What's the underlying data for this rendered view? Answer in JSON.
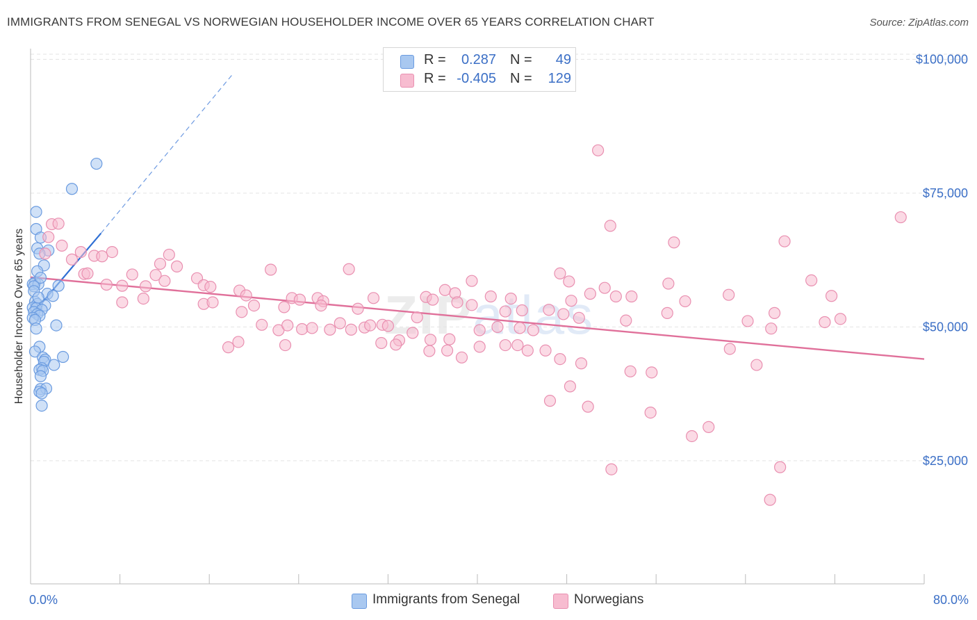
{
  "title": "IMMIGRANTS FROM SENEGAL VS NORWEGIAN HOUSEHOLDER INCOME OVER 65 YEARS CORRELATION CHART",
  "source": "Source: ZipAtlas.com",
  "watermark": {
    "zip": "ZIP",
    "atlas": "atlas"
  },
  "colors": {
    "blue_fill": "#a9c8f0",
    "blue_stroke": "#6a9be0",
    "blue_line": "#2f6fd4",
    "pink_fill": "#f7bcd0",
    "pink_stroke": "#e98fb0",
    "pink_line": "#e0709a",
    "axis_text": "#3b6fc6",
    "grid": "#e3e3e3"
  },
  "correlation": [
    {
      "r_label": "R =",
      "r": "0.287",
      "n_label": "N =",
      "n": "49",
      "color": "#a9c8f0"
    },
    {
      "r_label": "R =",
      "r": "-0.405",
      "n_label": "N =",
      "n": "129",
      "color": "#f7bcd0"
    }
  ],
  "legend": [
    {
      "label": "Immigrants from Senegal",
      "color": "#a9c8f0"
    },
    {
      "label": "Norwegians",
      "color": "#f7bcd0"
    }
  ],
  "chart_data": {
    "type": "scatter",
    "title": "IMMIGRANTS FROM SENEGAL VS NORWEGIAN HOUSEHOLDER INCOME OVER 65 YEARS CORRELATION CHART",
    "xlabel": "",
    "ylabel": "Householder Income Over 65 years",
    "xlim": [
      0,
      80
    ],
    "ylim": [
      2000,
      102000
    ],
    "x_tick_labels": [
      "0.0%",
      "80.0%"
    ],
    "y_ticks": [
      {
        "value": 25000,
        "label": "$25,000"
      },
      {
        "value": 50000,
        "label": "$50,000"
      },
      {
        "value": 75000,
        "label": "$75,000"
      },
      {
        "value": 100000,
        "label": "$100,000"
      }
    ],
    "grid": true,
    "legend_position": "bottom",
    "series": [
      {
        "name": "Immigrants from Senegal",
        "color": "#a9c8f0",
        "trend": {
          "x0": 0,
          "y0": 52000,
          "x1": 6.3,
          "y1": 67500,
          "dash_to_x": 18,
          "dash_to_y": 97000
        },
        "points": [
          [
            5.9,
            80500
          ],
          [
            3.7,
            75800
          ],
          [
            0.5,
            71500
          ],
          [
            0.5,
            68300
          ],
          [
            0.9,
            66700
          ],
          [
            0.6,
            64700
          ],
          [
            1.6,
            64300
          ],
          [
            0.8,
            63700
          ],
          [
            1.2,
            61500
          ],
          [
            0.4,
            58300
          ],
          [
            0.2,
            58000
          ],
          [
            0.7,
            58000
          ],
          [
            0.3,
            57600
          ],
          [
            2.5,
            57700
          ],
          [
            1.5,
            56200
          ],
          [
            2.0,
            55800
          ],
          [
            0.4,
            54700
          ],
          [
            0.6,
            54300
          ],
          [
            1.3,
            54000
          ],
          [
            0.2,
            53600
          ],
          [
            0.5,
            53500
          ],
          [
            1.0,
            53200
          ],
          [
            0.3,
            52800
          ],
          [
            0.6,
            52400
          ],
          [
            0.8,
            52100
          ],
          [
            0.2,
            51700
          ],
          [
            0.4,
            51300
          ],
          [
            2.3,
            50300
          ],
          [
            0.5,
            49700
          ],
          [
            0.8,
            46300
          ],
          [
            0.4,
            45400
          ],
          [
            2.9,
            44400
          ],
          [
            1.1,
            44300
          ],
          [
            1.3,
            43900
          ],
          [
            1.2,
            43500
          ],
          [
            2.1,
            42900
          ],
          [
            1.0,
            42300
          ],
          [
            0.8,
            42000
          ],
          [
            1.1,
            41800
          ],
          [
            0.9,
            40800
          ],
          [
            0.9,
            38400
          ],
          [
            1.4,
            38500
          ],
          [
            0.8,
            37900
          ],
          [
            1.0,
            37600
          ],
          [
            1.0,
            35300
          ],
          [
            0.6,
            60400
          ],
          [
            0.9,
            59200
          ],
          [
            0.3,
            56700
          ],
          [
            0.7,
            55500
          ]
        ]
      },
      {
        "name": "Norwegians",
        "color": "#f7bcd0",
        "trend": {
          "x0": 0,
          "y0": 59300,
          "x1": 80,
          "y1": 44000
        },
        "points": [
          [
            50.8,
            83000
          ],
          [
            1.9,
            69200
          ],
          [
            2.5,
            69300
          ],
          [
            1.6,
            66800
          ],
          [
            77.9,
            70500
          ],
          [
            51.9,
            68900
          ],
          [
            57.6,
            65800
          ],
          [
            67.5,
            66000
          ],
          [
            1.3,
            63700
          ],
          [
            5.7,
            63300
          ],
          [
            7.3,
            64000
          ],
          [
            12.4,
            63500
          ],
          [
            6.4,
            63200
          ],
          [
            3.7,
            62600
          ],
          [
            4.5,
            64000
          ],
          [
            2.8,
            65200
          ],
          [
            11.6,
            61800
          ],
          [
            13.1,
            61300
          ],
          [
            21.5,
            60700
          ],
          [
            28.5,
            60800
          ],
          [
            9.1,
            59800
          ],
          [
            11.2,
            59700
          ],
          [
            4.8,
            59900
          ],
          [
            5.1,
            60000
          ],
          [
            47.4,
            60000
          ],
          [
            14.9,
            59100
          ],
          [
            39.5,
            58600
          ],
          [
            48.2,
            58500
          ],
          [
            57.1,
            58100
          ],
          [
            69.9,
            58700
          ],
          [
            6.8,
            57900
          ],
          [
            8.2,
            57700
          ],
          [
            10.3,
            57600
          ],
          [
            12.0,
            58600
          ],
          [
            15.5,
            57800
          ],
          [
            16.1,
            57500
          ],
          [
            18.7,
            56800
          ],
          [
            19.3,
            55900
          ],
          [
            23.4,
            55400
          ],
          [
            24.1,
            55100
          ],
          [
            25.7,
            55400
          ],
          [
            26.2,
            54800
          ],
          [
            35.4,
            55600
          ],
          [
            37.1,
            56900
          ],
          [
            38.0,
            56300
          ],
          [
            41.2,
            55700
          ],
          [
            43.0,
            55300
          ],
          [
            48.4,
            54900
          ],
          [
            50.1,
            56200
          ],
          [
            51.4,
            57300
          ],
          [
            52.4,
            55700
          ],
          [
            53.8,
            55700
          ],
          [
            58.6,
            54800
          ],
          [
            71.7,
            55800
          ],
          [
            8.2,
            54600
          ],
          [
            10.1,
            55300
          ],
          [
            15.5,
            54300
          ],
          [
            16.3,
            54600
          ],
          [
            20.0,
            54000
          ],
          [
            22.7,
            53700
          ],
          [
            26.0,
            54000
          ],
          [
            29.3,
            53400
          ],
          [
            38.2,
            54600
          ],
          [
            39.5,
            54100
          ],
          [
            46.4,
            53200
          ],
          [
            47.7,
            52400
          ],
          [
            53.3,
            51200
          ],
          [
            57.0,
            52600
          ],
          [
            64.2,
            51100
          ],
          [
            66.6,
            52600
          ],
          [
            71.1,
            50900
          ],
          [
            72.5,
            51500
          ],
          [
            18.9,
            52800
          ],
          [
            20.7,
            50400
          ],
          [
            22.2,
            49400
          ],
          [
            23.0,
            50300
          ],
          [
            24.3,
            49600
          ],
          [
            25.2,
            49800
          ],
          [
            26.8,
            49500
          ],
          [
            27.7,
            50700
          ],
          [
            28.7,
            49500
          ],
          [
            29.9,
            49900
          ],
          [
            30.4,
            50300
          ],
          [
            31.5,
            50400
          ],
          [
            34.2,
            48900
          ],
          [
            35.8,
            47600
          ],
          [
            37.5,
            47700
          ],
          [
            40.2,
            49400
          ],
          [
            41.8,
            50000
          ],
          [
            43.8,
            49800
          ],
          [
            45.0,
            49400
          ],
          [
            49.1,
            51700
          ],
          [
            30.7,
            55400
          ],
          [
            32.0,
            50200
          ],
          [
            33.0,
            47500
          ],
          [
            34.6,
            51800
          ],
          [
            17.7,
            46200
          ],
          [
            18.6,
            47200
          ],
          [
            22.8,
            46600
          ],
          [
            31.4,
            47000
          ],
          [
            32.7,
            46700
          ],
          [
            35.7,
            45500
          ],
          [
            37.3,
            45600
          ],
          [
            38.6,
            44300
          ],
          [
            40.2,
            46300
          ],
          [
            42.5,
            46600
          ],
          [
            43.6,
            46600
          ],
          [
            44.5,
            45600
          ],
          [
            46.1,
            45600
          ],
          [
            47.4,
            44000
          ],
          [
            49.3,
            43200
          ],
          [
            62.6,
            45900
          ],
          [
            65.0,
            42900
          ],
          [
            53.7,
            41700
          ],
          [
            55.6,
            41500
          ],
          [
            48.3,
            38900
          ],
          [
            46.5,
            36200
          ],
          [
            49.9,
            35100
          ],
          [
            55.5,
            34000
          ],
          [
            59.2,
            29600
          ],
          [
            60.7,
            31300
          ],
          [
            52.0,
            23400
          ],
          [
            67.1,
            23800
          ],
          [
            66.2,
            17700
          ],
          [
            42.5,
            52900
          ],
          [
            44.0,
            53100
          ],
          [
            36.0,
            55100
          ],
          [
            62.5,
            56000
          ],
          [
            66.3,
            49700
          ]
        ]
      }
    ]
  }
}
